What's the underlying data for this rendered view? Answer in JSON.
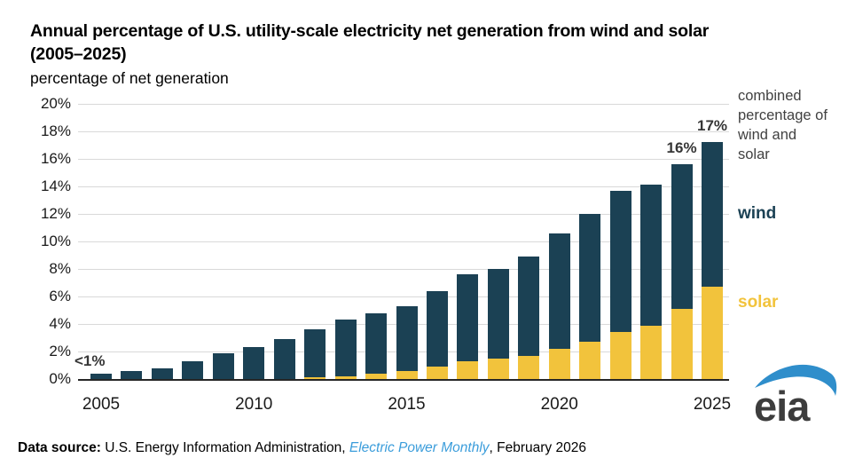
{
  "title": {
    "line1": "Annual percentage of U.S. utility-scale electricity net generation from wind and solar",
    "line2": "(2005–2025)",
    "subtitle": "percentage of net generation"
  },
  "chart_data": {
    "type": "bar",
    "stacked": true,
    "title": "Annual percentage of U.S. utility-scale electricity net generation from wind and solar (2005–2025)",
    "ylabel": "percentage of net generation",
    "xlabel": "",
    "ylim": [
      0,
      20
    ],
    "y_ticks": [
      0,
      2,
      4,
      6,
      8,
      10,
      12,
      14,
      16,
      18,
      20
    ],
    "y_tick_suffix": "%",
    "x_tick_years": [
      2005,
      2010,
      2015,
      2020,
      2025
    ],
    "grid": "horizontal",
    "legend_position": "right",
    "categories": [
      2005,
      2006,
      2007,
      2008,
      2009,
      2010,
      2011,
      2012,
      2013,
      2014,
      2015,
      2016,
      2017,
      2018,
      2019,
      2020,
      2021,
      2022,
      2023,
      2024,
      2025
    ],
    "series": [
      {
        "name": "solar",
        "color": "#f2c33c",
        "stack_order": "bottom",
        "values": [
          0,
          0,
          0,
          0,
          0,
          0,
          0,
          0.1,
          0.2,
          0.4,
          0.6,
          0.9,
          1.3,
          1.5,
          1.7,
          2.2,
          2.7,
          3.4,
          3.9,
          5.1,
          6.7
        ]
      },
      {
        "name": "wind",
        "color": "#1b4154",
        "stack_order": "top",
        "values": [
          0.4,
          0.6,
          0.8,
          1.3,
          1.9,
          2.3,
          2.9,
          3.5,
          4.1,
          4.4,
          4.7,
          5.5,
          6.3,
          6.5,
          7.2,
          8.4,
          9.3,
          10.3,
          10.2,
          10.5,
          10.5
        ]
      }
    ],
    "annotations": [
      {
        "year": 2005,
        "text": "<1%",
        "placement": "left"
      },
      {
        "year": 2024,
        "text": "16%",
        "placement": "above"
      },
      {
        "year": 2025,
        "text": "17%",
        "placement": "above"
      }
    ]
  },
  "legend": {
    "combined": "combined percentage of wind and solar",
    "wind": "wind",
    "solar": "solar"
  },
  "colors": {
    "wind": "#1b4154",
    "solar": "#f2c33c",
    "combined_label": "#414141",
    "gridline": "#d9d9d9",
    "axis_line": "#262626",
    "link_blue": "#3b9ddb",
    "logo_swoosh": "#2f8ecb",
    "logo_text": "#3d3d3d"
  },
  "footer": {
    "label": "Data source:",
    "org": " U.S. Energy Information Administration, ",
    "publication": "Electric Power Monthly",
    "suffix": ", February 2026"
  },
  "logo": {
    "text": "eia"
  }
}
